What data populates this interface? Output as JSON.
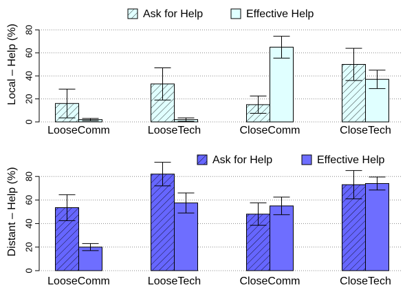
{
  "chart_data": [
    {
      "type": "bar",
      "y_label": "Local – Help (%)",
      "categories": [
        "LooseComm",
        "LooseTech",
        "CloseComm",
        "CloseTech"
      ],
      "series": [
        {
          "name": "Ask for Help",
          "color": "#e0ffff",
          "hatch": true,
          "values": [
            16,
            33,
            15,
            50
          ],
          "errors": [
            12.5,
            14,
            7.5,
            14
          ]
        },
        {
          "name": "Effective Help",
          "color": "#e0ffff",
          "hatch": false,
          "values": [
            2,
            2,
            65,
            37
          ],
          "errors": [
            1,
            1.5,
            9.5,
            8
          ]
        }
      ],
      "ylim": [
        0,
        100
      ],
      "yticks": [
        0,
        20,
        40,
        60,
        80
      ],
      "grid": true,
      "legend": "top"
    },
    {
      "type": "bar",
      "y_label": "Distant – Help (%)",
      "categories": [
        "LooseComm",
        "LooseTech",
        "CloseComm",
        "CloseTech"
      ],
      "series": [
        {
          "name": "Ask for Help",
          "color": "#6666ff",
          "hatch": true,
          "values": [
            53.5,
            82,
            48,
            73
          ],
          "errors": [
            11,
            10,
            9.5,
            12
          ]
        },
        {
          "name": "Effective Help",
          "color": "#6e6eff",
          "hatch": false,
          "values": [
            20,
            57.5,
            55,
            74
          ],
          "errors": [
            3,
            8.5,
            7.5,
            5.5
          ]
        }
      ],
      "ylim": [
        0,
        100
      ],
      "yticks": [
        0,
        20,
        40,
        60,
        80
      ],
      "grid": true,
      "legend": "top"
    }
  ]
}
